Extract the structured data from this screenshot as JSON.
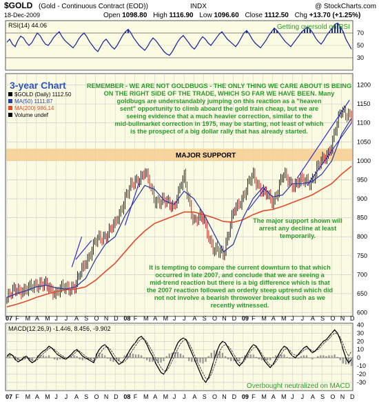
{
  "header": {
    "symbol": "$GOLD",
    "name": "(Gold - Continuous Contract (EOD))",
    "exchange": "INDX",
    "watermark": "@ StockCharts.com",
    "date": "18-Dec-2009",
    "open_label": "Open",
    "open": "1098.80",
    "high_label": "High",
    "high": "1116.90",
    "low_label": "Low",
    "low": "1096.60",
    "close_label": "Close",
    "close": "1112.50",
    "chg_label": "Chg",
    "chg": "+13.70 (+1.25%)"
  },
  "colors": {
    "background": "#ffffff",
    "panel_bg": "#fbfbe4",
    "grid": "#c8c8c8",
    "price_up": "#000000",
    "price_down": "#cc0000",
    "ma50": "#2d3fa0",
    "ma200": "#e04a2a",
    "annotation_text": "#2a9a2a",
    "title_text": "#2b53c8",
    "support_band": "#f6cc8e",
    "trendline": "#2b2bd8"
  },
  "chart_data": [
    {
      "type": "line",
      "panel": "RSI",
      "legend": [
        {
          "label": "RSI(14)",
          "value": "44.06"
        }
      ],
      "ylim": [
        10,
        90
      ],
      "y_ticks": [
        30,
        50,
        70
      ],
      "reference_lines": [
        30,
        70
      ],
      "series": [
        {
          "values": [
            55,
            60,
            52,
            48,
            58,
            65,
            62,
            55,
            50,
            54,
            62,
            70,
            66,
            58,
            52,
            50,
            56,
            63,
            68,
            72,
            64,
            58,
            54,
            50,
            46,
            52,
            60,
            66,
            70,
            64,
            56,
            50,
            44,
            40,
            48,
            56,
            60,
            54,
            48,
            44,
            50,
            58,
            66,
            72,
            76,
            70,
            62,
            56,
            50,
            46,
            42,
            48,
            56,
            62,
            58,
            52,
            46,
            40,
            36,
            34,
            40,
            48,
            56,
            62,
            66,
            60,
            54,
            48,
            44,
            50,
            58,
            64,
            60,
            54,
            50,
            56,
            62,
            68,
            72,
            66,
            60,
            56,
            52,
            48,
            54,
            62,
            70,
            74,
            68,
            60,
            54,
            50,
            46,
            52,
            58,
            66,
            72,
            78,
            74,
            68,
            62,
            56,
            52,
            48,
            54,
            60,
            66,
            72,
            76,
            80,
            76,
            70,
            62,
            56,
            52,
            58,
            66,
            72,
            78,
            84,
            86,
            80,
            72,
            60,
            52,
            44
          ]
        }
      ],
      "annotations": [
        "Getting oversold on RSI"
      ]
    },
    {
      "type": "candlestick",
      "panel": "Price",
      "legend": [
        {
          "label": "$GOLD (Daily)",
          "value": "1112.50"
        },
        {
          "label": "MA(50)",
          "value": "1111.87"
        },
        {
          "label": "MA(200)",
          "value": "986.14"
        },
        {
          "label": "Volume undef",
          "value": ""
        }
      ],
      "ylim": [
        590,
        1230
      ],
      "y_ticks": [
        600,
        650,
        700,
        750,
        800,
        850,
        900,
        950,
        1000,
        1050,
        1100,
        1150,
        1200
      ],
      "x_labels": [
        "07",
        "F",
        "M",
        "A",
        "M",
        "J",
        "J",
        "A",
        "S",
        "O",
        "N",
        "D",
        "08",
        "F",
        "M",
        "A",
        "M",
        "J",
        "J",
        "A",
        "S",
        "O",
        "N",
        "D",
        "09",
        "F",
        "M",
        "A",
        "M",
        "J",
        "J",
        "A",
        "S",
        "O",
        "N",
        "D"
      ],
      "x": [
        "Jan-07",
        "Feb-07",
        "Mar-07",
        "Apr-07",
        "May-07",
        "Jun-07",
        "Jul-07",
        "Aug-07",
        "Sep-07",
        "Oct-07",
        "Nov-07",
        "Dec-07",
        "Jan-08",
        "Feb-08",
        "Mar-08",
        "Apr-08",
        "May-08",
        "Jun-08",
        "Jul-08",
        "Aug-08",
        "Sep-08",
        "Oct-08",
        "Nov-08",
        "Dec-08",
        "Jan-09",
        "Feb-09",
        "Mar-09",
        "Apr-09",
        "May-09",
        "Jun-09",
        "Jul-09",
        "Aug-09",
        "Sep-09",
        "Oct-09",
        "Nov-09",
        "Dec-09"
      ],
      "close_series": [
        635,
        665,
        655,
        680,
        668,
        655,
        665,
        672,
        735,
        785,
        805,
        830,
        905,
        945,
        970,
        900,
        890,
        885,
        955,
        840,
        850,
        760,
        760,
        860,
        910,
        960,
        920,
        890,
        960,
        940,
        945,
        950,
        1000,
        1040,
        1140,
        1112
      ],
      "ma50_series": [
        640,
        650,
        658,
        668,
        672,
        665,
        662,
        668,
        690,
        740,
        780,
        800,
        855,
        895,
        935,
        925,
        895,
        885,
        920,
        900,
        860,
        810,
        760,
        780,
        850,
        900,
        930,
        905,
        910,
        940,
        940,
        945,
        965,
        1000,
        1070,
        1112
      ],
      "ma200_series": [
        615,
        622,
        630,
        640,
        648,
        655,
        660,
        662,
        668,
        685,
        708,
        730,
        760,
        790,
        815,
        835,
        845,
        855,
        865,
        865,
        858,
        850,
        840,
        838,
        845,
        858,
        868,
        872,
        880,
        890,
        900,
        910,
        925,
        940,
        965,
        986
      ],
      "support_band": {
        "label": "MAJOR SUPPORT",
        "from": 1000,
        "to": 1032
      },
      "title_label": "3-year Chart",
      "annotations": [
        "REMEMBER - WE ARE NOT GOLDBUGS - THE ONLY THING WE CARE ABOUT IS BEING ON THE RIGHT SIDE OF THE TRADE, WHICH SO FAR WE HAVE BEEN. Many goldbugs are understandably jumping on this reaction as a \"heaven sent\" opportunity to climb aboard the gold train cheap, but we are seeing evidence that a much heavier correction, similar to the mid-bullmarket correction in 1975, may be starting, not least of which is the prospect of a big dollar rally that has already started.",
        "The major support shown will arrest any decline at least temporarily.",
        "It is tempting to compare the current downturn to that which occurred in late 2007, and conclude that we are seeing a mid-trend reaction but there is a big difference which is that the 2007 reaction followed an orderly steep uptrend which did not not involve a bearish throwover breakout such as we recently witnessed."
      ]
    },
    {
      "type": "line",
      "panel": "MACD",
      "legend": [
        {
          "label": "MACD(12,26,9)",
          "value": "-1.446, 8.456, -9.902"
        }
      ],
      "ylim": [
        -40,
        42
      ],
      "y_ticks": [
        -30,
        -20,
        -10,
        0,
        10,
        20,
        30,
        40
      ],
      "series": [
        {
          "values": [
            2,
            5,
            3,
            -2,
            -5,
            -3,
            0,
            2,
            -3,
            -6,
            -4,
            1,
            5,
            8,
            10,
            14,
            12,
            8,
            4,
            2,
            0,
            -2,
            1,
            4,
            8,
            10,
            6,
            2,
            0,
            -2,
            -4,
            -6,
            4,
            10,
            14,
            16,
            12,
            6,
            0,
            -4,
            -8,
            -6,
            -2,
            4,
            10,
            15,
            19,
            24,
            26,
            22,
            16,
            8,
            2,
            -6,
            -12,
            -18,
            -20,
            -14,
            -6,
            2,
            10,
            18,
            22,
            24,
            22,
            14,
            6,
            -2,
            -10,
            -18,
            -26,
            -30,
            -24,
            -14,
            -2,
            8,
            16,
            20,
            18,
            12,
            6,
            0,
            -6,
            -10,
            -6,
            0,
            6,
            12,
            16,
            14,
            8,
            2,
            -4,
            -8,
            -12,
            -8,
            -2,
            4,
            10,
            14,
            12,
            6,
            2,
            0,
            4,
            8,
            12,
            14,
            10,
            6,
            8,
            12,
            16,
            20,
            22,
            26,
            30,
            34,
            30,
            22,
            10,
            0,
            -6,
            -2
          ]
        },
        {
          "values": [
            1,
            3,
            3,
            1,
            -2,
            -3,
            -2,
            0,
            -1,
            -3,
            -4,
            -2,
            2,
            5,
            8,
            11,
            12,
            10,
            7,
            4,
            2,
            0,
            0,
            2,
            5,
            8,
            8,
            5,
            2,
            0,
            -2,
            -4,
            -1,
            4,
            9,
            13,
            13,
            10,
            5,
            0,
            -4,
            -6,
            -5,
            -1,
            4,
            10,
            15,
            20,
            23,
            23,
            19,
            13,
            7,
            0,
            -6,
            -12,
            -16,
            -16,
            -11,
            -4,
            3,
            11,
            17,
            21,
            22,
            18,
            11,
            3,
            -5,
            -12,
            -19,
            -25,
            -26,
            -20,
            -11,
            -1,
            8,
            14,
            16,
            14,
            10,
            4,
            -1,
            -6,
            -7,
            -3,
            3,
            8,
            12,
            13,
            10,
            5,
            0,
            -5,
            -9,
            -9,
            -5,
            0,
            5,
            10,
            11,
            9,
            5,
            3,
            3,
            6,
            9,
            11,
            11,
            8,
            8,
            10,
            13,
            17,
            20,
            23,
            27,
            30,
            29,
            25,
            17,
            8,
            2,
            8
          ]
        },
        {
          "values": [
            1,
            2,
            0,
            -3,
            -3,
            0,
            2,
            2,
            -2,
            -3,
            0,
            3,
            3,
            3,
            2,
            3,
            0,
            -2,
            -3,
            -2,
            -2,
            -2,
            1,
            2,
            3,
            2,
            -2,
            -3,
            -2,
            -2,
            -2,
            -2,
            5,
            6,
            5,
            3,
            -1,
            -4,
            -5,
            -4,
            -4,
            0,
            3,
            5,
            6,
            5,
            4,
            4,
            3,
            -1,
            -3,
            -5,
            -5,
            -6,
            -6,
            -6,
            -4,
            2,
            5,
            6,
            7,
            7,
            5,
            3,
            0,
            -4,
            -5,
            -5,
            -5,
            -6,
            -7,
            -5,
            2,
            6,
            9,
            9,
            8,
            6,
            2,
            -2,
            -4,
            -4,
            -5,
            -4,
            1,
            3,
            3,
            4,
            4,
            1,
            -2,
            -3,
            -4,
            -3,
            -3,
            1,
            3,
            4,
            4,
            4,
            1,
            -1,
            -1,
            -1,
            -1,
            2,
            3,
            3,
            0,
            -2,
            0,
            2,
            3,
            3,
            2,
            3,
            3,
            4,
            1,
            -3,
            -7,
            -8,
            -8,
            -10
          ]
        }
      ],
      "x_labels": [
        "07",
        "F",
        "M",
        "A",
        "M",
        "J",
        "J",
        "A",
        "S",
        "O",
        "N",
        "D",
        "08",
        "F",
        "M",
        "A",
        "M",
        "J",
        "J",
        "A",
        "S",
        "O",
        "N",
        "D",
        "09",
        "F",
        "M",
        "A",
        "M",
        "J",
        "J",
        "A",
        "S",
        "O",
        "N",
        "D"
      ],
      "annotations": [
        "Overbought neutralized on MACD"
      ]
    }
  ]
}
